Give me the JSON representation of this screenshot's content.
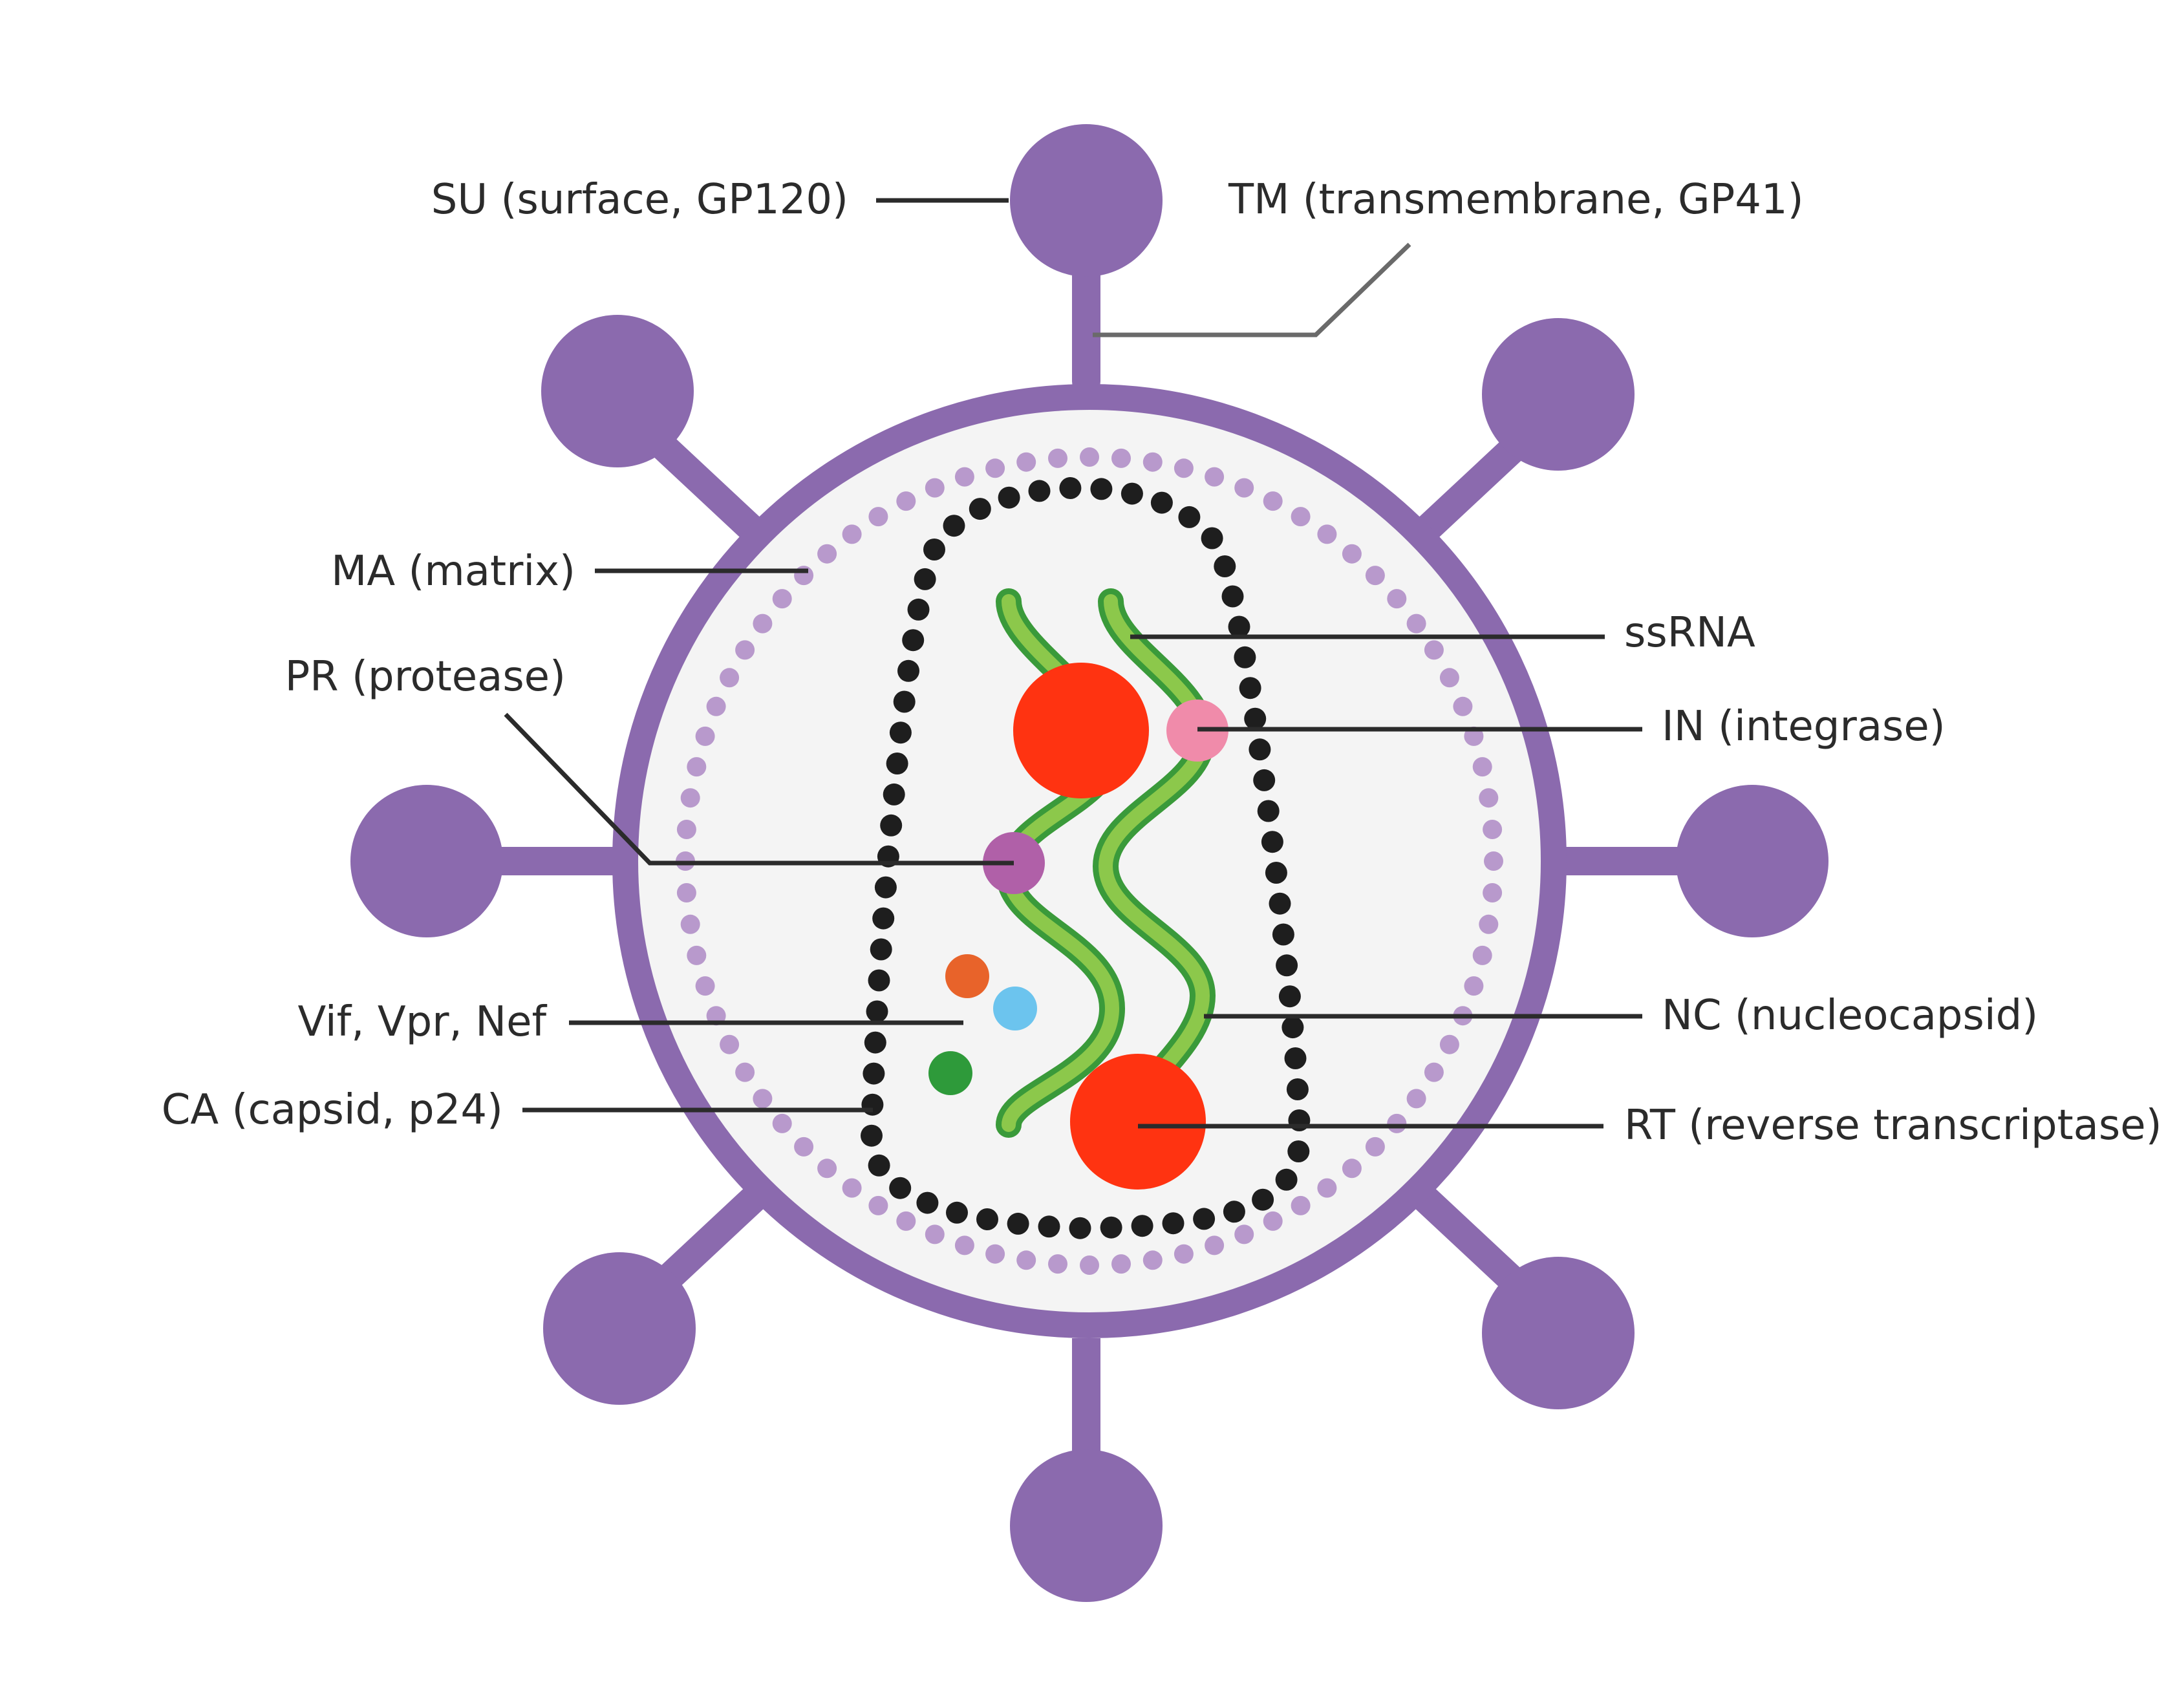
{
  "labels": {
    "su": "SU (surface, GP120)",
    "tm": "TM (transmembrane,  GP41)",
    "ma": "MA (matrix)",
    "pr": "PR (protease)",
    "ssrna": "ssRNA",
    "in": "IN (integrase)",
    "vif": "Vif, Vpr, Nef",
    "nc": "NC (nucleocapsid)",
    "ca": "CA (capsid, p24)",
    "rt": "RT (reverse transcriptase)"
  },
  "colors": {
    "envelope": "#8B6AAE",
    "interior": "#F4F4F4",
    "matrix_dots": "#B899CC",
    "capsid_dots": "#1E1E1E",
    "rna_outer": "#3A9A3A",
    "rna_inner": "#8CC84B",
    "rt_enzyme": "#FF3311",
    "integrase": "#F08BAA",
    "protease": "#B060A8",
    "vif": "#E8632A",
    "vpr": "#6CC4EE",
    "nef": "#2E9A3A",
    "leader_line": "#2b2b2b"
  },
  "icons": {
    "envelope": "virus-envelope-icon",
    "spike": "glycoprotein-spike-icon",
    "rna": "rna-strand-icon"
  }
}
